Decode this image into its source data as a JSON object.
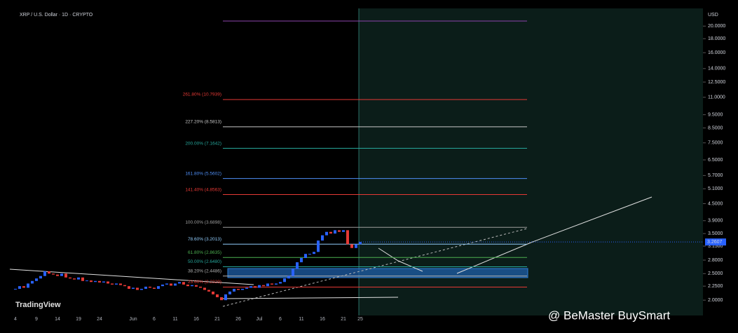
{
  "header": {
    "title": "XRP / U.S. Dollar · 1D · CRYPTO"
  },
  "watermark": "TradingView",
  "credit": "@ BeMaster BuySmart",
  "chart_data": {
    "type": "candlestick",
    "log_scale": true,
    "currency": "USD",
    "up_color": "#2962ff",
    "down_color": "#e53935",
    "categories": [
      "4",
      null,
      null,
      null,
      null,
      "9",
      null,
      null,
      null,
      null,
      "14",
      null,
      null,
      null,
      null,
      "19",
      null,
      null,
      null,
      null,
      "24",
      null,
      null,
      null,
      null,
      null,
      null,
      null,
      "Jun",
      null,
      null,
      null,
      null,
      "6",
      null,
      null,
      null,
      null,
      "11",
      null,
      null,
      null,
      null,
      "16",
      null,
      null,
      null,
      null,
      "21",
      null,
      null,
      null,
      null,
      "26",
      null,
      null,
      null,
      null,
      "Jul",
      null,
      null,
      null,
      null,
      "6",
      null,
      null,
      null,
      null,
      "11",
      null,
      null,
      null,
      null,
      "16",
      null,
      null,
      null,
      null,
      "21",
      null,
      null,
      null,
      "25"
    ],
    "values": [
      2.2,
      2.25,
      2.22,
      2.3,
      2.35,
      2.4,
      2.45,
      2.55,
      2.5,
      2.48,
      2.45,
      2.5,
      2.42,
      2.4,
      2.38,
      2.42,
      2.35,
      2.36,
      2.33,
      2.35,
      2.32,
      2.34,
      2.3,
      2.28,
      2.3,
      2.27,
      2.25,
      2.2,
      2.22,
      2.18,
      2.2,
      2.24,
      2.22,
      2.2,
      2.25,
      2.28,
      2.3,
      2.26,
      2.3,
      2.33,
      2.28,
      2.25,
      2.27,
      2.24,
      2.22,
      2.18,
      2.15,
      2.1,
      2.05,
      2.0,
      2.1,
      2.15,
      2.2,
      2.18,
      2.2,
      2.22,
      2.25,
      2.22,
      2.27,
      2.25,
      2.3,
      2.28,
      2.3,
      2.33,
      2.4,
      2.45,
      2.6,
      2.75,
      2.85,
      2.95,
      2.95,
      3.0,
      3.3,
      3.45,
      3.55,
      3.5,
      3.6,
      3.55,
      3.6,
      3.2,
      3.1,
      3.2,
      3.2607
    ],
    "last_price": {
      "value": 3.2607,
      "label": "3.2607"
    },
    "ylim": [
      1.79,
      22.8
    ],
    "yticks": [
      {
        "value": 20,
        "label": "20.0000"
      },
      {
        "value": 18,
        "label": "18.0000"
      },
      {
        "value": 16,
        "label": "16.0000"
      },
      {
        "value": 14,
        "label": "14.0000"
      },
      {
        "value": 12.5,
        "label": "12.5000"
      },
      {
        "value": 11,
        "label": "11.0000"
      },
      {
        "value": 9.5,
        "label": "9.5000"
      },
      {
        "value": 8.5,
        "label": "8.5000"
      },
      {
        "value": 7.5,
        "label": "7.5000"
      },
      {
        "value": 6.5,
        "label": "6.5000"
      },
      {
        "value": 5.7,
        "label": "5.7000"
      },
      {
        "value": 5.1,
        "label": "5.1000"
      },
      {
        "value": 4.5,
        "label": "4.5000"
      },
      {
        "value": 3.9,
        "label": "3.9000"
      },
      {
        "value": 3.5,
        "label": "3.5000"
      },
      {
        "value": 3.15,
        "label": "3.1500"
      },
      {
        "value": 2.8,
        "label": "2.8000"
      },
      {
        "value": 2.5,
        "label": "2.5000"
      },
      {
        "value": 2.25,
        "label": "2.2500"
      },
      {
        "value": 2.0,
        "label": "2.0000"
      }
    ],
    "fib_levels": [
      {
        "label": "261.80% (10.7939)",
        "value": 10.7939,
        "color": "#e53935"
      },
      {
        "label": "227.20% (8.5813)",
        "value": 8.5813,
        "color": "#c8c8c8"
      },
      {
        "label": "200.00% (7.1642)",
        "value": 7.1642,
        "color": "#26a69a"
      },
      {
        "label": "161.80% (5.5602)",
        "value": 5.5602,
        "color": "#4f8ff7"
      },
      {
        "label": "141.40% (4.8563)",
        "value": 4.8563,
        "color": "#e53935"
      },
      {
        "label": "100.00% (3.6898)",
        "value": 3.6898,
        "color": "#9e9e9e"
      },
      {
        "label": "78.60% (3.2013)",
        "value": 3.2013,
        "color": "#90caf9"
      },
      {
        "label": "61.80% (2.8635)",
        "value": 2.8635,
        "color": "#4caf50"
      },
      {
        "label": "50.00% (2.6480)",
        "value": 2.648,
        "color": "#26a69a"
      },
      {
        "label": "38.20% (2.4486)",
        "value": 2.4486,
        "color": "#b0b0b0"
      },
      {
        "label": "23.60% (2.2329)",
        "value": 2.2329,
        "color": "#e53935"
      }
    ]
  }
}
